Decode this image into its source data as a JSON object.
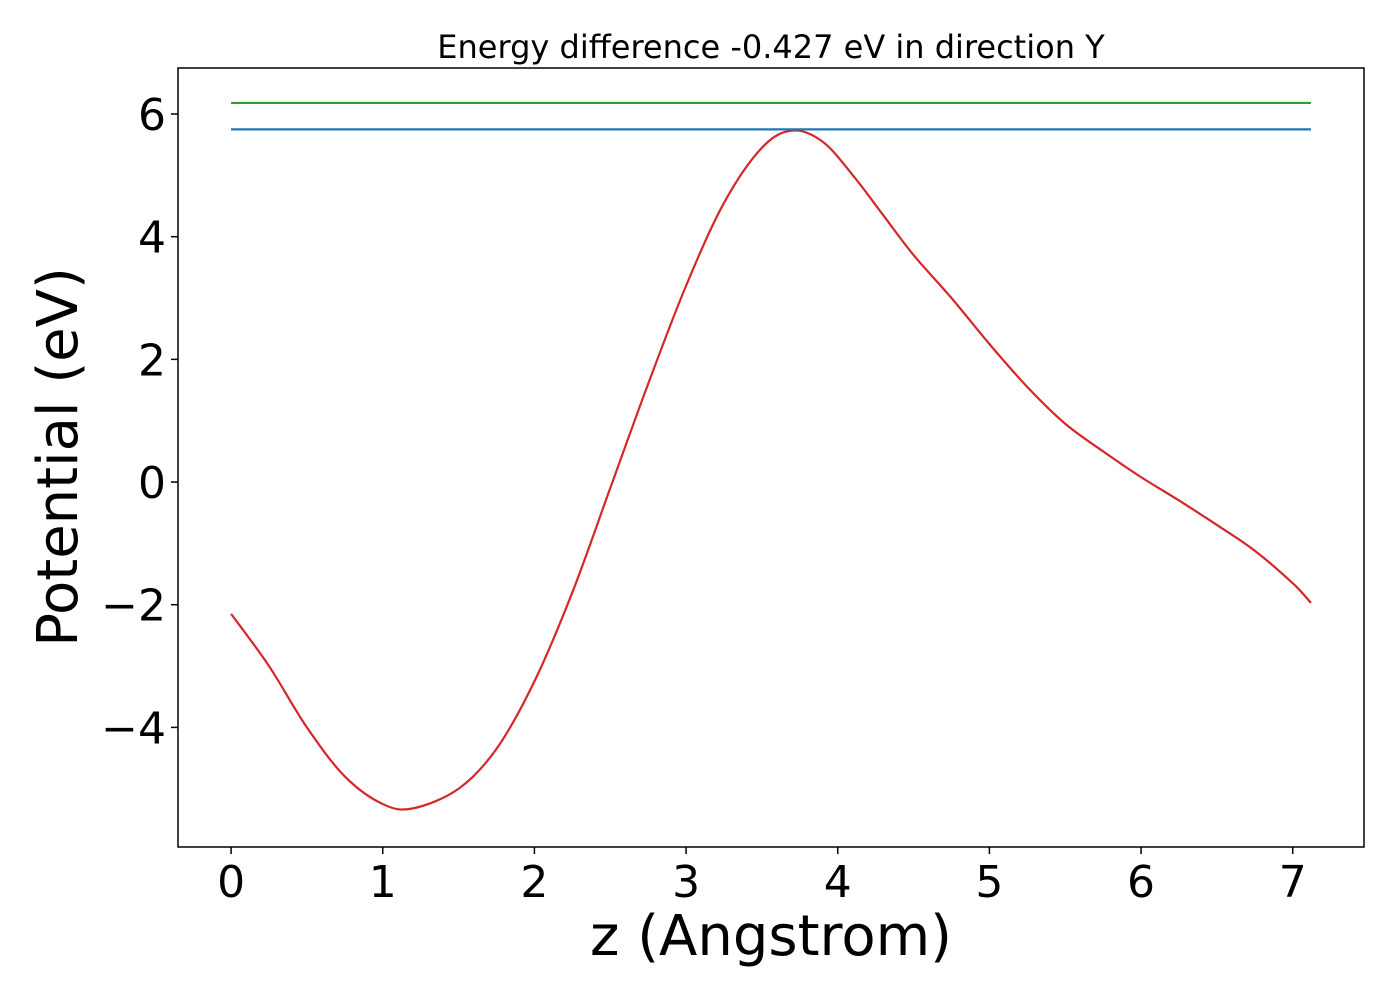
{
  "chart_data": {
    "type": "line",
    "title": "Energy difference -0.427 eV in direction Y",
    "xlabel": "z (Angstrom)",
    "ylabel": "Potential (eV)",
    "xlim": [
      -0.35,
      7.47
    ],
    "ylim": [
      -5.95,
      6.75
    ],
    "xticks": [
      0,
      1,
      2,
      3,
      4,
      5,
      6,
      7
    ],
    "xtick_labels": [
      "0",
      "1",
      "2",
      "3",
      "4",
      "5",
      "6",
      "7"
    ],
    "yticks": [
      -4,
      -2,
      0,
      2,
      4,
      6
    ],
    "ytick_labels": [
      "−4",
      "−2",
      "0",
      "2",
      "4",
      "6"
    ],
    "grid": false,
    "legend": "none",
    "series": [
      {
        "color": "#d62728",
        "x": [
          0,
          0.25,
          0.5,
          0.75,
          1.0,
          1.2,
          1.5,
          1.75,
          2.0,
          2.25,
          2.5,
          2.75,
          3.0,
          3.25,
          3.5,
          3.7,
          3.9,
          4.1,
          4.3,
          4.5,
          4.75,
          5.0,
          5.25,
          5.5,
          5.75,
          6.0,
          6.25,
          6.5,
          6.75,
          7.0,
          7.12
        ],
        "y": [
          -2.15,
          -3.0,
          -4.0,
          -4.8,
          -5.25,
          -5.32,
          -5.0,
          -4.35,
          -3.25,
          -1.8,
          -0.1,
          1.6,
          3.2,
          4.55,
          5.45,
          5.73,
          5.55,
          5.0,
          4.35,
          3.7,
          3.0,
          2.25,
          1.55,
          0.95,
          0.5,
          0.08,
          -0.3,
          -0.7,
          -1.12,
          -1.65,
          -1.97
        ]
      },
      {
        "color": "#1f77b4",
        "x": [
          0,
          7.12
        ],
        "y": [
          5.75,
          5.75
        ]
      },
      {
        "color": "#2ca02c",
        "x": [
          0,
          7.12
        ],
        "y": [
          6.18,
          6.18
        ]
      }
    ]
  }
}
